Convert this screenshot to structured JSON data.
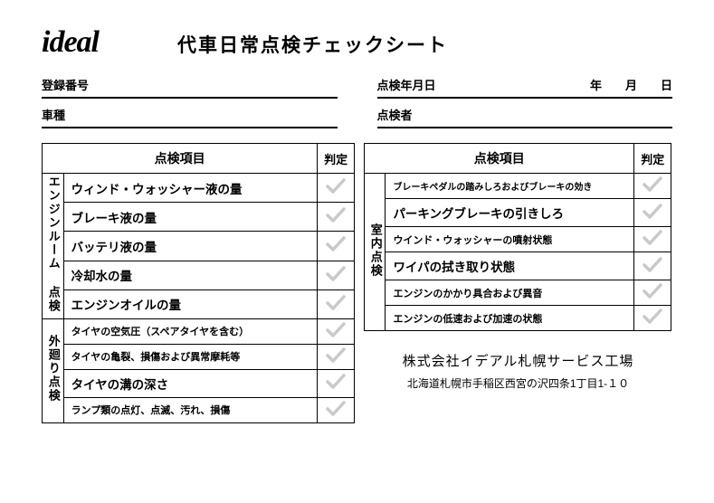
{
  "logo_text": "ideal",
  "title": "代車日常点検チェックシート",
  "fields": {
    "reg_label": "登録番号",
    "model_label": "車種",
    "date_label": "点検年月日",
    "inspector_label": "点検者",
    "year_suffix": "年",
    "month_suffix": "月",
    "day_suffix": "日"
  },
  "table_headers": {
    "item": "点検項目",
    "judge": "判定"
  },
  "left": {
    "cat1": "エンジンルーム\n点検",
    "cat2": "外廻り点検",
    "items1": [
      "ウィンド・ウォッシャー液の量",
      "ブレーキ液の量",
      "バッテリ液の量",
      "冷却水の量",
      "エンジンオイルの量"
    ],
    "items2": [
      "タイヤの空気圧（スペアタイヤを含む）",
      "タイヤの亀裂、損傷および異常摩耗等",
      "タイヤの溝の深さ",
      "ランプ類の点灯、点滅、汚れ、損傷"
    ]
  },
  "right": {
    "cat": "室内点検",
    "items": [
      "ブレーキペダルの踏みしろおよびブレーキの効き",
      "パーキングブレーキの引きしろ",
      "ウインド・ウォッシャーの噴射状態",
      "ワイパの拭き取り状態",
      "エンジンのかかり具合および異音",
      "エンジンの低速および加速の状態"
    ]
  },
  "company": {
    "name": "株式会社イデアル札幌サービス工場",
    "address": "北海道札幌市手稲区西宮の沢四条1丁目1-１０"
  },
  "checkmark_color": "#c9c9c9"
}
